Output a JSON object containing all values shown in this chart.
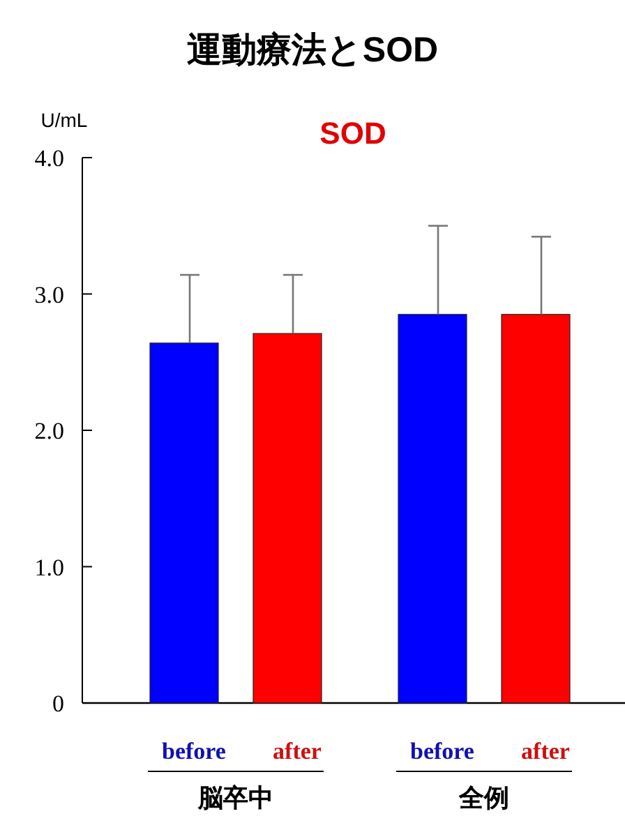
{
  "chart_data": {
    "type": "bar",
    "title": "運動療法とSOD",
    "subtitle": "SOD",
    "ylabel": "U/mL",
    "categories": [
      "before",
      "after",
      "before",
      "after"
    ],
    "values": [
      2.64,
      2.71,
      2.85,
      2.85
    ],
    "colors": [
      "#0000ff",
      "#ff0000",
      "#0000ff",
      "#ff0000"
    ],
    "errors": [
      [
        2.64,
        3.14
      ],
      [
        2.71,
        3.14
      ],
      [
        2.85,
        3.5
      ],
      [
        2.85,
        3.42
      ]
    ],
    "ylim": [
      0,
      4
    ],
    "yticks": [
      0,
      {
        "value": 1,
        "label": "1.0"
      },
      {
        "value": 2,
        "label": "2.0"
      },
      {
        "value": 3,
        "label": "3.0"
      },
      {
        "value": 4,
        "label": "4.0"
      }
    ],
    "annotations": [
      "脳卒中",
      "全例"
    ],
    "grid": false
  }
}
